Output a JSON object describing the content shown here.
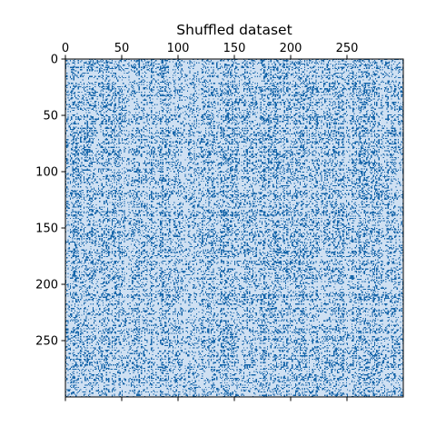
{
  "chart_data": {
    "type": "heatmap",
    "title": "Shuffled dataset",
    "xlabel": "",
    "ylabel": "",
    "rows": 300,
    "cols": 300,
    "xlim": [
      0,
      300
    ],
    "ylim": [
      300,
      0
    ],
    "xticks": [
      0,
      50,
      100,
      150,
      200,
      250
    ],
    "yticks": [
      0,
      50,
      100,
      150,
      200,
      250
    ],
    "x_tick_position": "top",
    "bottom_ticks_unlabeled": true,
    "values_description": "binary matrix",
    "colormap": {
      "low": "#cfe0f2",
      "high": "#1565a9"
    },
    "grid": false,
    "legend": "none"
  }
}
